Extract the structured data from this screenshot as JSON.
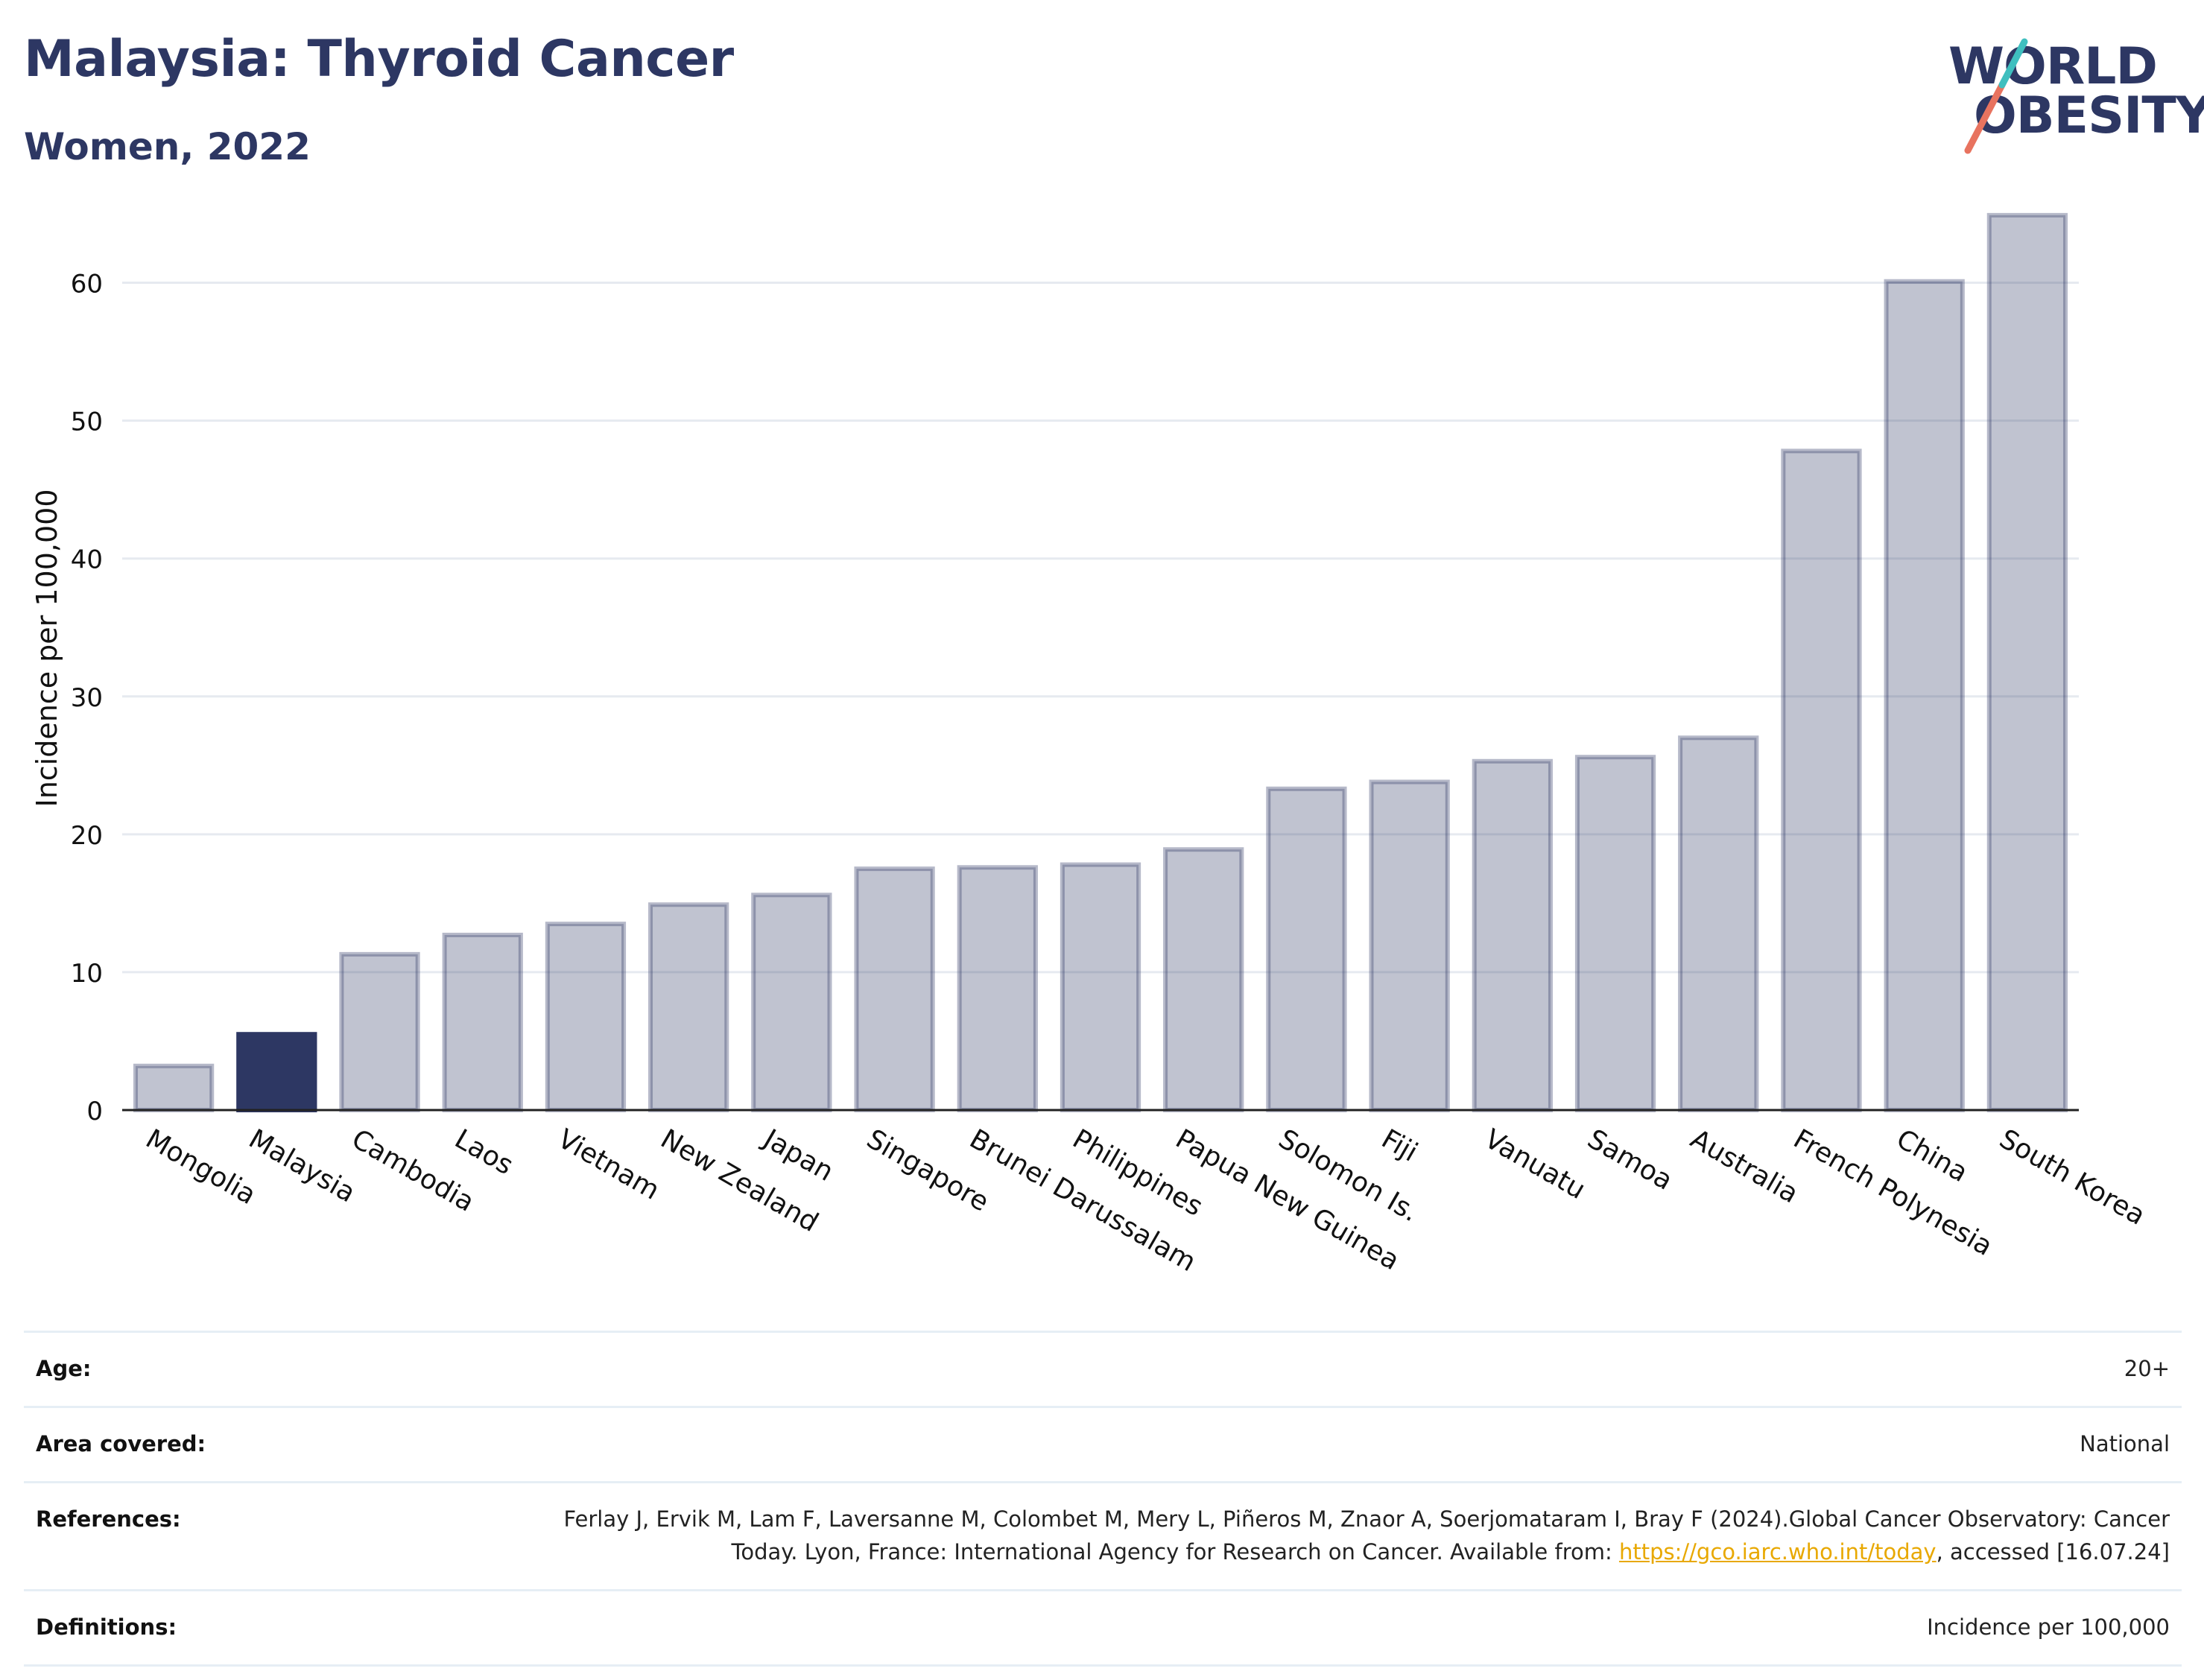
{
  "header": {
    "title": "Malaysia: Thyroid Cancer",
    "subtitle": "Women, 2022"
  },
  "logo": {
    "line1": "WORLD",
    "line2": "OBESITY",
    "slash_colors": [
      "#e8735f",
      "#3fbfbf"
    ]
  },
  "chart_data": {
    "type": "bar",
    "title": "",
    "xlabel": "",
    "ylabel": "Incidence per 100,000",
    "ylim": [
      0,
      67
    ],
    "yticks": [
      0,
      10,
      20,
      30,
      40,
      50,
      60
    ],
    "grid": true,
    "legend": "none",
    "highlight": "Malaysia",
    "colors": {
      "bar": "#2d3763",
      "highlight": "#2d3763",
      "highlight_opacity": 1,
      "bar_opacity": 0.3
    },
    "categories": [
      "Mongolia",
      "Malaysia",
      "Cambodia",
      "Laos",
      "Vietnam",
      "New Zealand",
      "Japan",
      "Singapore",
      "Brunei Darussalam",
      "Philippines",
      "Papua New Guinea",
      "Solomon Is.",
      "Fiji",
      "Vanuatu",
      "Samoa",
      "Australia",
      "French Polynesia",
      "China",
      "South Korea"
    ],
    "values": [
      3.2,
      5.5,
      11.3,
      12.7,
      13.5,
      14.9,
      15.6,
      17.5,
      17.6,
      17.8,
      18.9,
      23.3,
      23.8,
      25.3,
      25.6,
      27.0,
      47.8,
      60.1,
      64.9
    ]
  },
  "details": [
    {
      "label": "Age:",
      "value": "20+"
    },
    {
      "label": "Area covered:",
      "value": "National"
    },
    {
      "label": "References:",
      "value": "Ferlay J, Ervik M, Lam F, Laversanne M, Colombet M, Mery L, Piñeros M, Znaor A, Soerjomataram I, Bray F (2024).Global Cancer Observatory: Cancer Today. Lyon, France: International Agency for Research on Cancer. Available from: ",
      "link": "https://gco.iarc.who.int/today",
      "suffix": ", accessed [16.07.24]"
    },
    {
      "label": "Definitions:",
      "value": "Incidence per 100,000"
    }
  ]
}
